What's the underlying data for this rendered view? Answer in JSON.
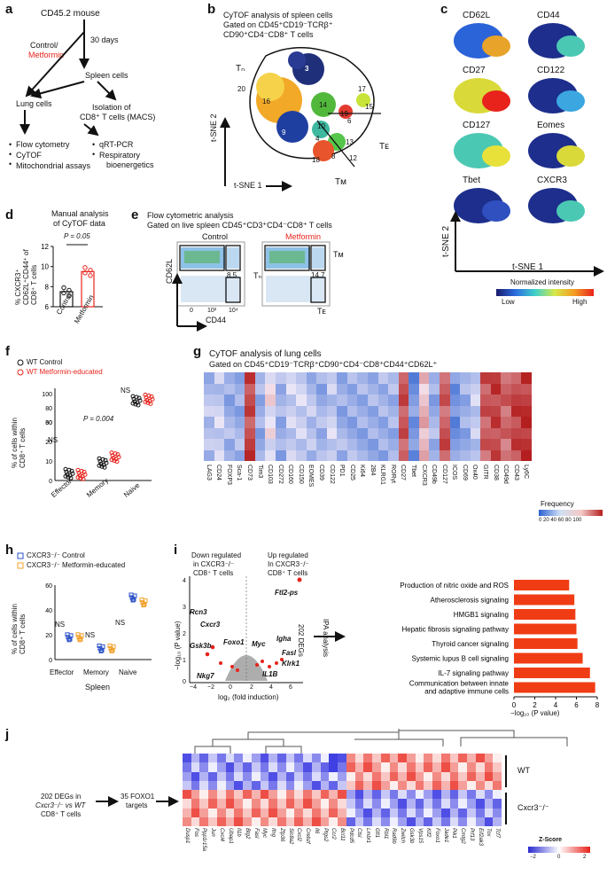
{
  "panels": {
    "a": {
      "label": "a",
      "mouse": "CD45.2 mouse",
      "control": "Control/",
      "metformin": "Metformin",
      "days": "30 days",
      "spleen_cells": "Spleen cells",
      "lung_cells": "Lung cells",
      "isolation": "Isolation of",
      "isolation2": "CD8⁺ T cells (MACS)",
      "lung_assays": [
        "Flow cytometry",
        "CyTOF",
        "Mitochondrial assays"
      ],
      "cd8_assays": [
        "qRT-PCR",
        "Respiratory",
        "bioenergetics"
      ]
    },
    "b": {
      "label": "b",
      "title1": "CyTOF analysis of spleen cells",
      "title2": "Gated on CD45⁺CD19⁻TCRβ⁺",
      "title3": "CD90⁺CD4⁻CD8⁺ T cells",
      "tn": "Tₙ",
      "te": "Tᴇ",
      "tm": "Tᴍ",
      "xaxis": "t-SNE 1",
      "yaxis": "t-SNE 2",
      "clusters": [
        "2",
        "3",
        "20",
        "16",
        "14",
        "17",
        "15",
        "19",
        "6",
        "10",
        "13",
        "4",
        "9",
        "18",
        "8",
        "12"
      ]
    },
    "c": {
      "label": "c",
      "markers": [
        "CD62L",
        "CD44",
        "CD27",
        "CD122",
        "CD127",
        "Eomes",
        "Tbet",
        "CXCR3"
      ],
      "xaxis": "t-SNE 1",
      "yaxis": "t-SNE 2",
      "scale_title": "Normalized intensity",
      "scale_low": "Low",
      "scale_high": "High"
    },
    "d": {
      "label": "d",
      "title1": "Manual analysis",
      "title2": "of CyTOF data",
      "pvalue": "P = 0.05",
      "ylabel": "% CXCR3⁺ CD62L⁺CD44⁺ of CD8⁺ T cells",
      "yticks": [
        "6",
        "8",
        "10",
        "12"
      ],
      "categories": [
        "Control",
        "Metformin"
      ]
    },
    "e": {
      "label": "e",
      "title1": "Flow cytometric analysis",
      "title2": "Gated on live spleen CD45⁺CD3⁺CD4⁻CD8⁺ T cells",
      "control": "Control",
      "metformin": "Metformin",
      "control_value": "8.5",
      "metformin_value": "14.7",
      "xaxis": "CD44",
      "yaxis": "CD62L",
      "tm": "Tᴍ",
      "tn": "Tₙ",
      "te": "Tᴇ",
      "ticks": [
        "0",
        "10²",
        "10⁴"
      ]
    },
    "f": {
      "label": "f",
      "legend": [
        "WT Control",
        "WT Metformin-educated"
      ],
      "ylabel": "% of cells within CD8⁺ T cells",
      "yticks": [
        "0",
        "10",
        "20",
        "30",
        "60",
        "80",
        "100"
      ],
      "categories": [
        "Effector",
        "Memory",
        "Naive"
      ],
      "ns1": "NS",
      "pvalue": "P = 0.004",
      "ns2": "NS"
    },
    "g": {
      "label": "g",
      "title1": "CyTOF analysis of lung cells",
      "title2": "Gated on CD45⁺CD19⁻TCRβ⁺CD90⁺CD4⁻CD8⁺CD44⁺CD62L⁺",
      "markers": [
        "LAG3",
        "CD24",
        "FOXP3",
        "Sca-1",
        "CD73",
        "Tim3",
        "CD103",
        "CD272",
        "CD160",
        "CD150",
        "EOMES",
        "CD39",
        "CD122",
        "PD1",
        "CD25",
        "Ki64",
        "2B4",
        "KLRG1",
        "RORγt",
        "CD27",
        "Tbet",
        "CXCR3",
        "CD49b",
        "CD127",
        "ICOS",
        "CD69",
        "Ox40",
        "GITR",
        "CD38",
        "CD49d",
        "CD43",
        "Ly6C"
      ],
      "legend_title": "Frequency",
      "legend_ticks": "0 20 40 60 80 100"
    },
    "h": {
      "label": "h",
      "legend": [
        "CXCR3⁻/⁻ Control",
        "CXCR3⁻/⁻ Metformin-educated"
      ],
      "ylabel": "% of cells within CD8⁺ T cells",
      "yticks": [
        "0",
        "20",
        "40",
        "60"
      ],
      "categories": [
        "Effector",
        "Memory",
        "Naive"
      ],
      "ns": [
        "NS",
        "NS",
        "NS"
      ],
      "xtitle": "Spleen"
    },
    "i": {
      "label": "i",
      "down": [
        "Down regulated",
        "in CXCR3⁻/⁻",
        "CD8⁺ T cells"
      ],
      "up": [
        "Up regulated",
        "In CXCR3⁻/⁻",
        "CD8⁺ T cells"
      ],
      "genes": [
        "Ftl2-ps",
        "Rcn3",
        "Cxcr3",
        "Gsk3b",
        "Foxo1",
        "Nkg7",
        "Myc",
        "Igha",
        "Fasl",
        "Klrk1",
        "IL1B"
      ],
      "xlabel": "log₂ (fold induction)",
      "ylabel": "−log₁₀ (P value)",
      "xticks": [
        "−4",
        "−2",
        "0",
        "2",
        "4",
        "6"
      ],
      "yticks": [
        "0",
        "1",
        "2",
        "3",
        "4"
      ],
      "degs": "202 DEGs",
      "ipa": "IPA analysis",
      "pathway_xlabel": "−log₁₀ (P value)",
      "pathway_xticks": [
        "0",
        "2",
        "4",
        "6",
        "8"
      ]
    },
    "j": {
      "label": "j",
      "left1": "202 DEGs in",
      "left2": "Cxcr3⁻/⁻ vs WT",
      "left3": "CD8⁺ T cells",
      "targets1": "35 FOXO1",
      "targets2": "targets",
      "wt": "WT",
      "ko": "Cxcr3⁻/⁻",
      "zscore": "Z-Score",
      "z_ticks": [
        "−2",
        "0",
        "2"
      ],
      "genes": [
        "Dusp1",
        "Fos",
        "Ppp1r15a",
        "Jun",
        "Cxcl4",
        "Ubap1",
        "Il1b",
        "Btg2",
        "Fasl",
        "Myc",
        "Ifng",
        "Zfp36",
        "Slc8a2",
        "Cxcl2",
        "Crebzf",
        "Il6",
        "Ptgs2",
        "Ccr2",
        "Bcl11",
        "Pdcd5",
        "Ctsl",
        "Lmbr1",
        "Gfi1",
        "Rbl1",
        "Rad9b",
        "Zwilch",
        "Gsk3b",
        "Vps15",
        "Klf2",
        "Foxo1",
        "Jade1",
        "Pik1",
        "Cmtg2",
        "Prf13",
        "Eif2ak3",
        "Tox",
        "Tcf7"
      ]
    }
  },
  "chart_data": [
    {
      "type": "bar",
      "panel": "d",
      "categories": [
        "Control",
        "Metformin"
      ],
      "values": [
        7.5,
        9.5
      ],
      "ylim": [
        6,
        12
      ],
      "ylabel": "% CXCR3⁺ CD62L⁺CD44⁺ of CD8⁺ T cells",
      "annotation": "P = 0.05"
    },
    {
      "type": "scatter",
      "panel": "f",
      "categories": [
        "Effector",
        "Memory",
        "Naive"
      ],
      "series": [
        {
          "name": "WT Control",
          "values": [
            3.5,
            9,
            90
          ]
        },
        {
          "name": "WT Metformin-educated",
          "values": [
            3,
            12,
            92
          ]
        }
      ]
    },
    {
      "type": "scatter",
      "panel": "h",
      "categories": [
        "Effector",
        "Memory",
        "Naive"
      ],
      "series": [
        {
          "name": "CXCR3⁻/⁻ Control",
          "values": [
            18,
            9,
            50
          ]
        },
        {
          "name": "CXCR3⁻/⁻ Metformin-educated",
          "values": [
            18,
            9,
            46
          ]
        }
      ],
      "ylim": [
        0,
        60
      ]
    },
    {
      "type": "bar",
      "panel": "i",
      "orientation": "horizontal",
      "categories": [
        "Production of nitric oxide and ROS",
        "Atherosclerosis signaling",
        "HMGB1 signaling",
        "Hepatic fibrosis signaling pathway",
        "Thyroid cancer signaling",
        "Systemic lupus B cell signaling",
        "IL-7 signaling pathway",
        "Communication between innate and adaptive immune cells"
      ],
      "values": [
        5.3,
        5.8,
        5.9,
        6.0,
        6.1,
        6.6,
        7.3,
        7.8
      ],
      "xlim": [
        0,
        8
      ],
      "xlabel": "−log₁₀ (P value)"
    }
  ]
}
